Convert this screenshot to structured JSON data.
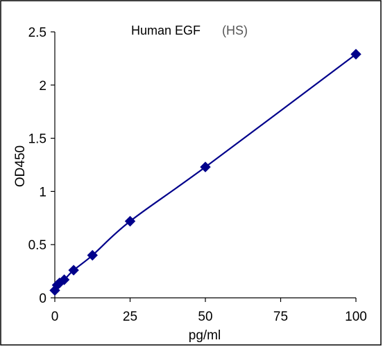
{
  "chart_data": {
    "type": "line",
    "title": "Human EGF",
    "subtitle": "(HS)",
    "xlabel": "pg/ml",
    "ylabel": "OD450",
    "xlim": [
      0,
      100
    ],
    "ylim": [
      0,
      2.5
    ],
    "x_ticks": [
      "0",
      "25",
      "50",
      "75",
      "100"
    ],
    "y_ticks": [
      "0",
      "0.5",
      "1",
      "1.5",
      "2",
      "2.5"
    ],
    "x_tick_values": [
      0,
      25,
      50,
      75,
      100
    ],
    "y_tick_values": [
      0,
      0.5,
      1,
      1.5,
      2,
      2.5
    ],
    "grid": false,
    "legend": "none",
    "series": [
      {
        "x": [
          0,
          0.78,
          1.56,
          3.13,
          6.25,
          12.5,
          25,
          50,
          100
        ],
        "y": [
          0.07,
          0.12,
          0.14,
          0.17,
          0.26,
          0.4,
          0.72,
          1.23,
          2.29
        ],
        "color": "#00008b",
        "marker": "diamond"
      }
    ]
  }
}
